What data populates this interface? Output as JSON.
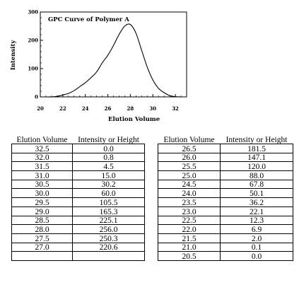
{
  "chart_data": {
    "type": "line",
    "title": "GPC Curve of Polymer A",
    "xlabel": "Elution Volume",
    "ylabel": "Intensity",
    "xlim": [
      20,
      33
    ],
    "ylim": [
      0,
      300
    ],
    "x_ticks": [
      "20",
      "22",
      "24",
      "26",
      "28",
      "30",
      "32"
    ],
    "y_ticks": [
      "0",
      "100",
      "200",
      "300"
    ],
    "grid": false,
    "series": [
      {
        "x": [
          20.5,
          21.0,
          21.5,
          22.0,
          22.5,
          23.0,
          23.5,
          24.0,
          24.5,
          25.0,
          25.5,
          26.0,
          26.5,
          27.0,
          27.5,
          28.0,
          28.5,
          29.0,
          29.5,
          30.0,
          30.5,
          31.0,
          31.5,
          32.0,
          32.5
        ],
        "y": [
          0.0,
          0.1,
          2.0,
          6.9,
          12.3,
          22.1,
          36.2,
          50.1,
          67.8,
          88.0,
          120.0,
          147.1,
          181.5,
          220.6,
          250.3,
          256.0,
          225.1,
          165.3,
          105.5,
          60.0,
          30.2,
          15.0,
          4.5,
          0.8,
          0.0
        ]
      }
    ]
  },
  "table": {
    "headers": [
      "Elution Volume",
      "Intensity or Height",
      "Elution Volume",
      "Intensity or Height"
    ],
    "rows": [
      [
        "32.5",
        "0.0",
        "26.5",
        "181.5"
      ],
      [
        "32.0",
        "0.8",
        "26.0",
        "147.1"
      ],
      [
        "31.5",
        "4.5",
        "25.5",
        "120.0"
      ],
      [
        "31.0",
        "15.0",
        "25.0",
        "88.0"
      ],
      [
        "30.5",
        "30.2",
        "24.5",
        "67.8"
      ],
      [
        "30.0",
        "60.0",
        "24.0",
        "50.1"
      ],
      [
        "29.5",
        "105.5",
        "23.5",
        "36.2"
      ],
      [
        "29.0",
        "165.3",
        "23.0",
        "22.1"
      ],
      [
        "28.5",
        "225.1",
        "22.5",
        "12.3"
      ],
      [
        "28.0",
        "256.0",
        "22.0",
        "6.9"
      ],
      [
        "27.5",
        "250.3",
        "21.5",
        "2.0"
      ],
      [
        "27.0",
        "220.6",
        "21.0",
        "0.1"
      ],
      [
        "",
        "",
        "20.5",
        "0.0"
      ]
    ]
  }
}
